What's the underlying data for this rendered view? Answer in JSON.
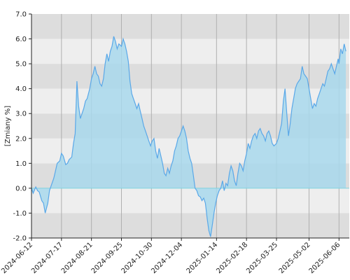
{
  "chart_data": {
    "type": "area",
    "ylabel": "[Zmiany %]",
    "ylim": [
      -2.0,
      7.0
    ],
    "yticks": [
      "-2.0",
      "-1.0",
      "0.0",
      "1.0",
      "2.0",
      "3.0",
      "4.0",
      "5.0",
      "6.0",
      "7.0"
    ],
    "xlim": [
      "2024-06-12",
      "2025-06-18"
    ],
    "xticks": [
      "2024-06-12",
      "2024-07-17",
      "2024-08-21",
      "2024-09-25",
      "2024-10-30",
      "2024-12-04",
      "2025-01-14",
      "2025-02-18",
      "2025-03-25",
      "2025-05-02",
      "2025-06-06"
    ],
    "band_colors": [
      "#dddddd",
      "#eeeeee"
    ],
    "line_color": "#5aa8e8",
    "fill_color": "#a8d8ec",
    "series": [
      {
        "values": [
          [
            "2024-06-12",
            0.0
          ],
          [
            "2024-06-14",
            -0.2
          ],
          [
            "2024-06-17",
            0.05
          ],
          [
            "2024-06-19",
            -0.1
          ],
          [
            "2024-06-21",
            -0.15
          ],
          [
            "2024-06-24",
            -0.5
          ],
          [
            "2024-06-26",
            -0.6
          ],
          [
            "2024-06-28",
            -1.0
          ],
          [
            "2024-07-01",
            -0.6
          ],
          [
            "2024-07-03",
            -0.1
          ],
          [
            "2024-07-05",
            0.1
          ],
          [
            "2024-07-08",
            0.4
          ],
          [
            "2024-07-10",
            0.7
          ],
          [
            "2024-07-12",
            1.0
          ],
          [
            "2024-07-15",
            1.1
          ],
          [
            "2024-07-17",
            1.4
          ],
          [
            "2024-07-19",
            1.3
          ],
          [
            "2024-07-22",
            0.95
          ],
          [
            "2024-07-24",
            1.0
          ],
          [
            "2024-07-26",
            1.15
          ],
          [
            "2024-07-29",
            1.25
          ],
          [
            "2024-07-31",
            1.8
          ],
          [
            "2024-08-02",
            2.2
          ],
          [
            "2024-08-04",
            4.3
          ],
          [
            "2024-08-06",
            3.3
          ],
          [
            "2024-08-08",
            2.8
          ],
          [
            "2024-08-10",
            3.0
          ],
          [
            "2024-08-12",
            3.2
          ],
          [
            "2024-08-14",
            3.5
          ],
          [
            "2024-08-16",
            3.6
          ],
          [
            "2024-08-19",
            4.0
          ],
          [
            "2024-08-21",
            4.4
          ],
          [
            "2024-08-23",
            4.6
          ],
          [
            "2024-08-25",
            4.9
          ],
          [
            "2024-08-27",
            4.6
          ],
          [
            "2024-08-29",
            4.5
          ],
          [
            "2024-08-31",
            4.2
          ],
          [
            "2024-09-02",
            4.1
          ],
          [
            "2024-09-04",
            4.4
          ],
          [
            "2024-09-06",
            5.0
          ],
          [
            "2024-09-08",
            5.4
          ],
          [
            "2024-09-10",
            5.1
          ],
          [
            "2024-09-12",
            5.5
          ],
          [
            "2024-09-14",
            5.7
          ],
          [
            "2024-09-16",
            6.1
          ],
          [
            "2024-09-18",
            5.9
          ],
          [
            "2024-09-20",
            5.6
          ],
          [
            "2024-09-22",
            5.8
          ],
          [
            "2024-09-25",
            5.7
          ],
          [
            "2024-09-27",
            6.0
          ],
          [
            "2024-09-29",
            5.8
          ],
          [
            "2024-10-01",
            5.5
          ],
          [
            "2024-10-03",
            5.1
          ],
          [
            "2024-10-05",
            4.3
          ],
          [
            "2024-10-07",
            3.8
          ],
          [
            "2024-10-09",
            3.6
          ],
          [
            "2024-10-11",
            3.4
          ],
          [
            "2024-10-13",
            3.2
          ],
          [
            "2024-10-15",
            3.4
          ],
          [
            "2024-10-17",
            3.1
          ],
          [
            "2024-10-19",
            2.8
          ],
          [
            "2024-10-21",
            2.5
          ],
          [
            "2024-10-23",
            2.3
          ],
          [
            "2024-10-25",
            2.1
          ],
          [
            "2024-10-27",
            1.9
          ],
          [
            "2024-10-29",
            1.7
          ],
          [
            "2024-10-31",
            1.9
          ],
          [
            "2024-11-02",
            2.0
          ],
          [
            "2024-11-04",
            1.5
          ],
          [
            "2024-11-06",
            1.2
          ],
          [
            "2024-11-08",
            1.6
          ],
          [
            "2024-11-10",
            1.3
          ],
          [
            "2024-11-12",
            1.0
          ],
          [
            "2024-11-14",
            0.6
          ],
          [
            "2024-11-16",
            0.5
          ],
          [
            "2024-11-18",
            0.8
          ],
          [
            "2024-11-20",
            0.6
          ],
          [
            "2024-11-22",
            0.9
          ],
          [
            "2024-11-24",
            1.1
          ],
          [
            "2024-11-26",
            1.5
          ],
          [
            "2024-11-28",
            1.7
          ],
          [
            "2024-11-30",
            2.0
          ],
          [
            "2024-12-02",
            2.1
          ],
          [
            "2024-12-04",
            2.3
          ],
          [
            "2024-12-06",
            2.5
          ],
          [
            "2024-12-08",
            2.3
          ],
          [
            "2024-12-10",
            2.0
          ],
          [
            "2024-12-12",
            1.5
          ],
          [
            "2024-12-14",
            1.2
          ],
          [
            "2024-12-16",
            1.0
          ],
          [
            "2024-12-18",
            0.5
          ],
          [
            "2024-12-20",
            0.0
          ],
          [
            "2024-12-22",
            -0.1
          ],
          [
            "2024-12-24",
            -0.3
          ],
          [
            "2024-12-26",
            -0.35
          ],
          [
            "2024-12-28",
            -0.5
          ],
          [
            "2024-12-30",
            -0.4
          ],
          [
            "2025-01-01",
            -0.6
          ],
          [
            "2025-01-03",
            -1.2
          ],
          [
            "2025-01-05",
            -1.7
          ],
          [
            "2025-01-07",
            -1.95
          ],
          [
            "2025-01-09",
            -1.5
          ],
          [
            "2025-01-11",
            -1.0
          ],
          [
            "2025-01-13",
            -0.6
          ],
          [
            "2025-01-15",
            -0.3
          ],
          [
            "2025-01-17",
            -0.1
          ],
          [
            "2025-01-19",
            0.0
          ],
          [
            "2025-01-21",
            0.3
          ],
          [
            "2025-01-23",
            -0.1
          ],
          [
            "2025-01-25",
            0.2
          ],
          [
            "2025-01-27",
            0.1
          ],
          [
            "2025-01-29",
            0.6
          ],
          [
            "2025-01-31",
            0.9
          ],
          [
            "2025-02-02",
            0.7
          ],
          [
            "2025-02-04",
            0.3
          ],
          [
            "2025-02-06",
            0.1
          ],
          [
            "2025-02-08",
            0.6
          ],
          [
            "2025-02-10",
            1.0
          ],
          [
            "2025-02-12",
            0.9
          ],
          [
            "2025-02-14",
            0.7
          ],
          [
            "2025-02-16",
            1.1
          ],
          [
            "2025-02-18",
            1.4
          ],
          [
            "2025-02-20",
            1.8
          ],
          [
            "2025-02-22",
            1.6
          ],
          [
            "2025-02-24",
            1.9
          ],
          [
            "2025-02-26",
            2.1
          ],
          [
            "2025-02-28",
            2.2
          ],
          [
            "2025-03-02",
            2.0
          ],
          [
            "2025-03-04",
            2.3
          ],
          [
            "2025-03-06",
            2.4
          ],
          [
            "2025-03-08",
            2.2
          ],
          [
            "2025-03-10",
            2.1
          ],
          [
            "2025-03-12",
            1.9
          ],
          [
            "2025-03-14",
            2.2
          ],
          [
            "2025-03-16",
            2.3
          ],
          [
            "2025-03-18",
            2.1
          ],
          [
            "2025-03-20",
            1.8
          ],
          [
            "2025-03-22",
            1.7
          ],
          [
            "2025-03-25",
            1.8
          ],
          [
            "2025-03-27",
            2.0
          ],
          [
            "2025-03-29",
            2.3
          ],
          [
            "2025-03-31",
            2.6
          ],
          [
            "2025-04-02",
            3.5
          ],
          [
            "2025-04-04",
            4.0
          ],
          [
            "2025-04-06",
            3.0
          ],
          [
            "2025-04-08",
            2.1
          ],
          [
            "2025-04-10",
            2.6
          ],
          [
            "2025-04-12",
            3.2
          ],
          [
            "2025-04-14",
            3.6
          ],
          [
            "2025-04-16",
            4.0
          ],
          [
            "2025-04-18",
            4.2
          ],
          [
            "2025-04-20",
            4.3
          ],
          [
            "2025-04-22",
            4.4
          ],
          [
            "2025-04-24",
            4.9
          ],
          [
            "2025-04-26",
            4.6
          ],
          [
            "2025-04-28",
            4.5
          ],
          [
            "2025-04-30",
            4.4
          ],
          [
            "2025-05-02",
            4.0
          ],
          [
            "2025-05-04",
            3.6
          ],
          [
            "2025-05-06",
            3.2
          ],
          [
            "2025-05-08",
            3.4
          ],
          [
            "2025-05-10",
            3.3
          ],
          [
            "2025-05-12",
            3.6
          ],
          [
            "2025-05-14",
            3.8
          ],
          [
            "2025-05-16",
            4.0
          ],
          [
            "2025-05-18",
            4.2
          ],
          [
            "2025-05-20",
            4.1
          ],
          [
            "2025-05-22",
            4.4
          ],
          [
            "2025-05-24",
            4.7
          ],
          [
            "2025-05-26",
            4.8
          ],
          [
            "2025-05-28",
            5.0
          ],
          [
            "2025-05-30",
            4.8
          ],
          [
            "2025-06-01",
            4.6
          ],
          [
            "2025-06-03",
            4.9
          ],
          [
            "2025-06-05",
            5.2
          ],
          [
            "2025-06-06",
            5.0
          ],
          [
            "2025-06-08",
            5.6
          ],
          [
            "2025-06-10",
            5.4
          ],
          [
            "2025-06-12",
            5.8
          ],
          [
            "2025-06-14",
            5.5
          ]
        ]
      }
    ]
  }
}
